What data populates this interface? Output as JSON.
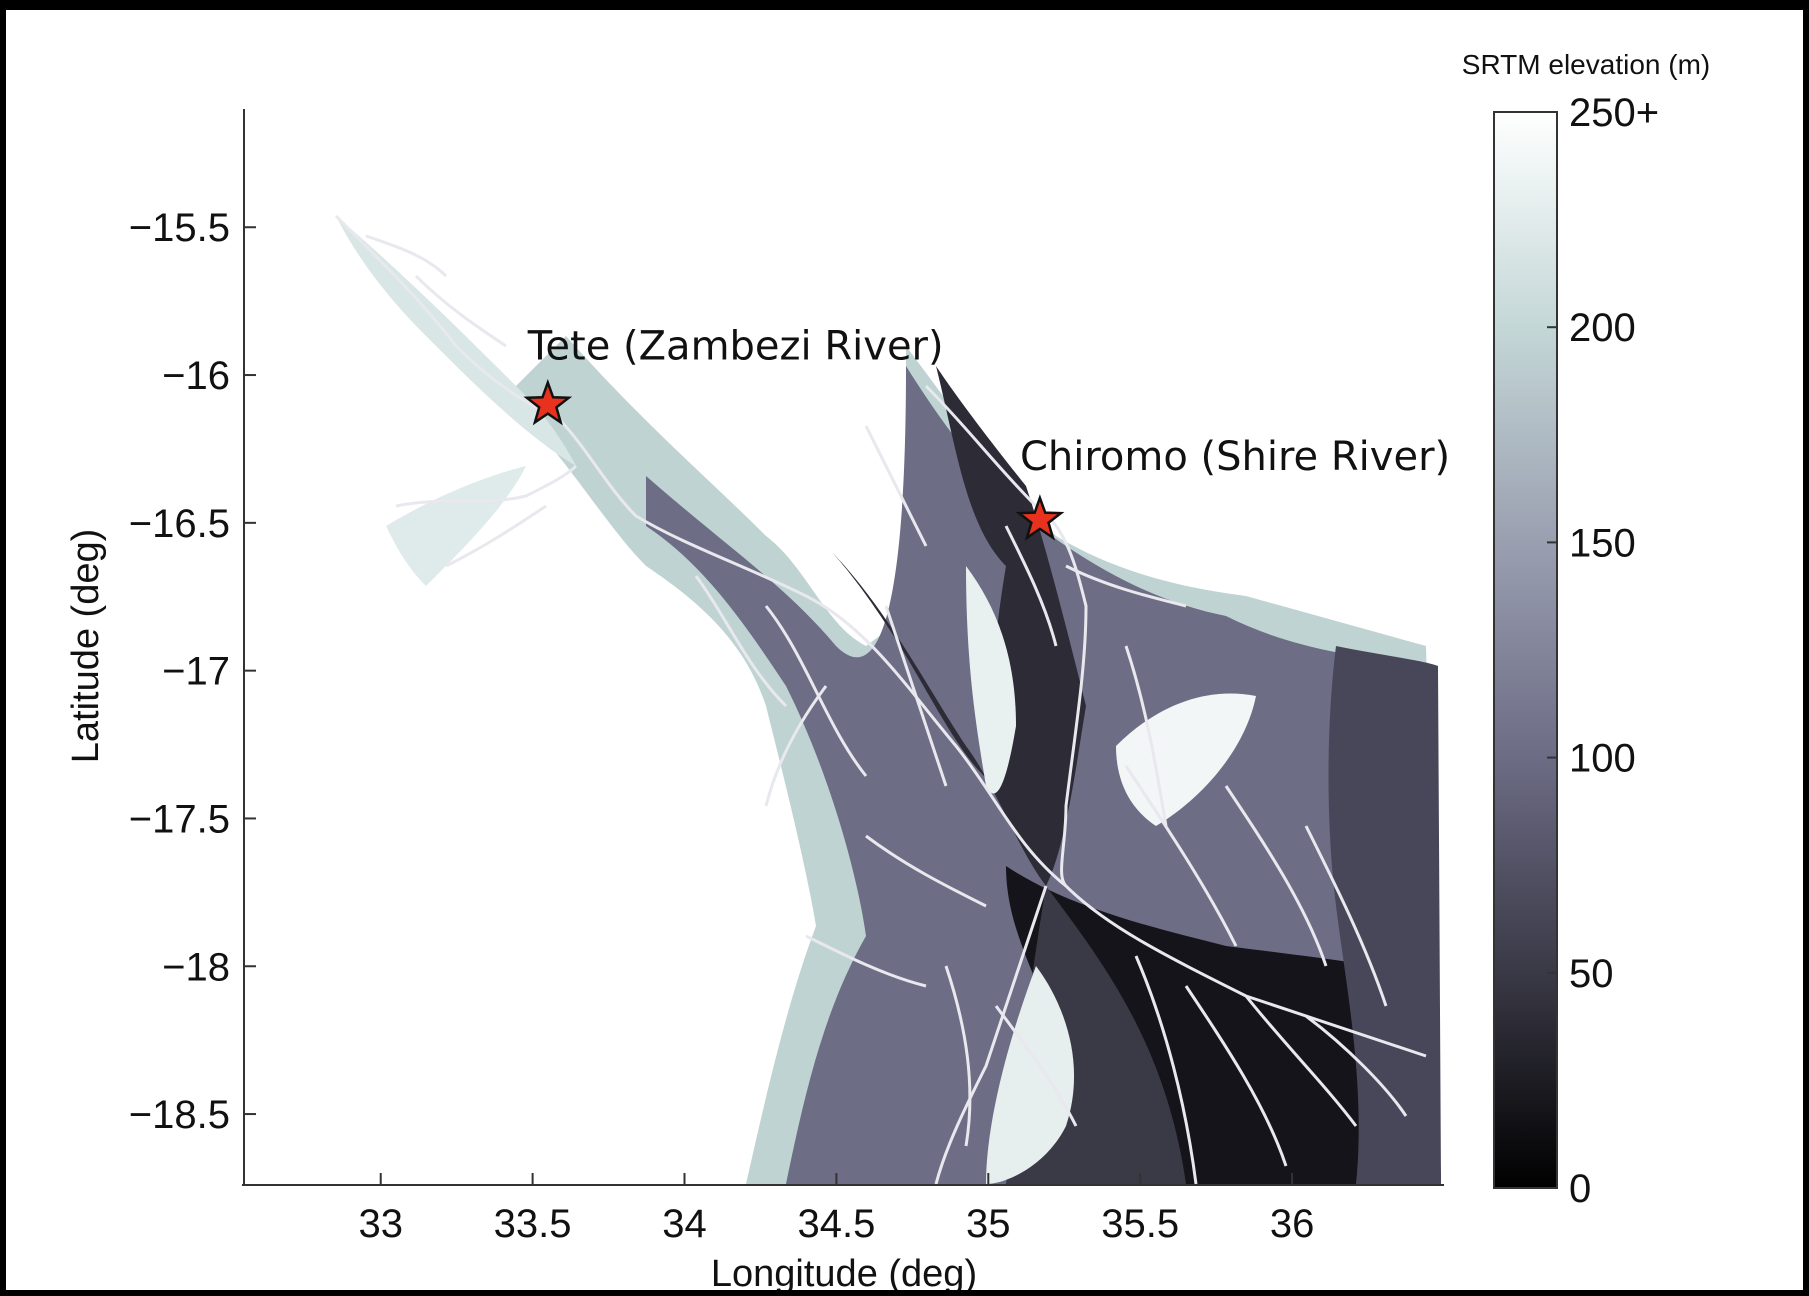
{
  "map": {
    "x_axis": {
      "label": "Longitude (deg)",
      "ticks": [
        33,
        33.5,
        34,
        34.5,
        35,
        35.5,
        36
      ],
      "tick_labels": [
        "33",
        "33.5",
        "34",
        "34.5",
        "35",
        "35.5",
        "36"
      ],
      "range": [
        32.55,
        36.5
      ]
    },
    "y_axis": {
      "label": "Latitude (deg)",
      "ticks": [
        -15.5,
        -16,
        -16.5,
        -17,
        -17.5,
        -18,
        -18.5
      ],
      "tick_labels": [
        "−15.5",
        "−16",
        "−16.5",
        "−17",
        "−17.5",
        "−18",
        "−18.5"
      ],
      "range": [
        -15.1,
        -18.74
      ]
    },
    "colorbar": {
      "title": "SRTM elevation (m)",
      "ticks": [
        250,
        200,
        150,
        100,
        50,
        0
      ],
      "tick_labels": [
        "250+",
        "200",
        "150",
        "100",
        "50",
        "0"
      ],
      "range": [
        0,
        250
      ],
      "colors": [
        "#000000",
        "#3a3946",
        "#6c6c85",
        "#9a9fb0",
        "#c4d7d7",
        "#ffffff"
      ]
    },
    "locations": [
      {
        "name": "Tete (Zambezi River)",
        "lon": 33.55,
        "lat": -16.1,
        "marker_color": "#e8321e"
      },
      {
        "name": "Chiromo (Shire River)",
        "lon": 35.17,
        "lat": -16.49,
        "marker_color": "#e8321e"
      }
    ],
    "colors": {
      "river": "#e8e8ee",
      "axis": "#333333"
    }
  }
}
